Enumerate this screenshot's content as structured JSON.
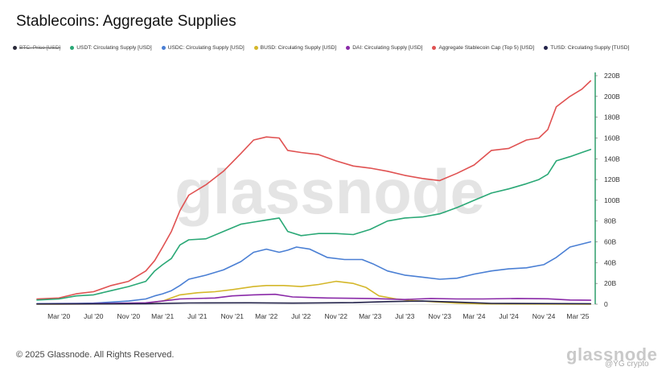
{
  "page": {
    "title": "Stablecoins: Aggregate Supplies",
    "copyright": "© 2025 Glassnode. All Rights Reserved.",
    "logo_text": "glassnode",
    "watermark_text": "glassnode",
    "footer_handle": "@YG crypto"
  },
  "chart_data": {
    "type": "line",
    "x_ticks": [
      "Mar '20",
      "Jul '20",
      "Nov '20",
      "Mar '21",
      "Jul '21",
      "Nov '21",
      "Mar '22",
      "Jul '22",
      "Nov '22",
      "Mar '23",
      "Jul '23",
      "Nov '23",
      "Mar '24",
      "Jul '24",
      "Nov '24",
      "Mar '25"
    ],
    "y_ticks": [
      "0",
      "20B",
      "40B",
      "60B",
      "80B",
      "100B",
      "120B",
      "140B",
      "160B",
      "180B",
      "200B",
      "220B"
    ],
    "ylim": [
      0,
      220
    ],
    "y_unit": "B USD",
    "xlim": [
      "2019-12-15",
      "2025-05-01"
    ],
    "y_axis_color": "#2e9e6b",
    "legend": [
      {
        "name": "BTC: Price [USD]",
        "color": "#2a2a3a",
        "disabled": true
      },
      {
        "name": "USDT: Circulating Supply [USD]",
        "color": "#2aa876",
        "disabled": false
      },
      {
        "name": "USDC: Circulating Supply [USD]",
        "color": "#4a7fd4",
        "disabled": false
      },
      {
        "name": "BUSD: Circulating Supply [USD]",
        "color": "#d4b72a",
        "disabled": false
      },
      {
        "name": "DAI: Circulating Supply [USD]",
        "color": "#8a2aa8",
        "disabled": false
      },
      {
        "name": "Aggregate Stablecoin Cap (Top 5) [USD]",
        "color": "#e05252",
        "disabled": false
      },
      {
        "name": "TUSD: Circulating Supply [TUSD]",
        "color": "#23234a",
        "disabled": false
      }
    ],
    "series": [
      {
        "name": "Aggregate Stablecoin Cap (Top 5) [USD]",
        "color": "#e05252",
        "points": [
          [
            "2019-12-15",
            5
          ],
          [
            "2020-03-01",
            6
          ],
          [
            "2020-05-01",
            10
          ],
          [
            "2020-07-01",
            12
          ],
          [
            "2020-09-01",
            18
          ],
          [
            "2020-11-01",
            22
          ],
          [
            "2021-01-01",
            32
          ],
          [
            "2021-02-01",
            42
          ],
          [
            "2021-03-01",
            55
          ],
          [
            "2021-04-01",
            70
          ],
          [
            "2021-05-01",
            90
          ],
          [
            "2021-06-01",
            105
          ],
          [
            "2021-08-01",
            115
          ],
          [
            "2021-10-01",
            128
          ],
          [
            "2021-12-01",
            145
          ],
          [
            "2022-01-15",
            158
          ],
          [
            "2022-03-01",
            161
          ],
          [
            "2022-04-15",
            160
          ],
          [
            "2022-05-15",
            148
          ],
          [
            "2022-07-01",
            146
          ],
          [
            "2022-09-01",
            144
          ],
          [
            "2022-11-01",
            138
          ],
          [
            "2023-01-01",
            133
          ],
          [
            "2023-03-01",
            131
          ],
          [
            "2023-05-01",
            128
          ],
          [
            "2023-07-01",
            124
          ],
          [
            "2023-09-01",
            121
          ],
          [
            "2023-11-01",
            119
          ],
          [
            "2024-01-01",
            126
          ],
          [
            "2024-03-01",
            134
          ],
          [
            "2024-05-01",
            148
          ],
          [
            "2024-07-01",
            150
          ],
          [
            "2024-09-01",
            158
          ],
          [
            "2024-10-15",
            160
          ],
          [
            "2024-11-15",
            168
          ],
          [
            "2024-12-15",
            190
          ],
          [
            "2025-02-01",
            200
          ],
          [
            "2025-03-15",
            207
          ],
          [
            "2025-04-15",
            215
          ]
        ]
      },
      {
        "name": "USDT: Circulating Supply [USD]",
        "color": "#2aa876",
        "points": [
          [
            "2019-12-15",
            4
          ],
          [
            "2020-03-01",
            5
          ],
          [
            "2020-05-01",
            8
          ],
          [
            "2020-07-01",
            9
          ],
          [
            "2020-09-01",
            13
          ],
          [
            "2020-11-01",
            17
          ],
          [
            "2021-01-01",
            22
          ],
          [
            "2021-02-01",
            32
          ],
          [
            "2021-03-01",
            38
          ],
          [
            "2021-04-01",
            44
          ],
          [
            "2021-05-01",
            57
          ],
          [
            "2021-06-01",
            62
          ],
          [
            "2021-08-01",
            63
          ],
          [
            "2021-10-01",
            70
          ],
          [
            "2021-12-01",
            77
          ],
          [
            "2022-01-15",
            79
          ],
          [
            "2022-03-01",
            81
          ],
          [
            "2022-04-15",
            83
          ],
          [
            "2022-05-15",
            70
          ],
          [
            "2022-07-01",
            66
          ],
          [
            "2022-09-01",
            68
          ],
          [
            "2022-11-01",
            68
          ],
          [
            "2023-01-01",
            67
          ],
          [
            "2023-03-01",
            72
          ],
          [
            "2023-05-01",
            80
          ],
          [
            "2023-07-01",
            83
          ],
          [
            "2023-09-01",
            84
          ],
          [
            "2023-11-01",
            87
          ],
          [
            "2024-01-01",
            93
          ],
          [
            "2024-03-01",
            100
          ],
          [
            "2024-05-01",
            107
          ],
          [
            "2024-07-01",
            111
          ],
          [
            "2024-09-01",
            116
          ],
          [
            "2024-10-15",
            120
          ],
          [
            "2024-11-15",
            125
          ],
          [
            "2024-12-15",
            138
          ],
          [
            "2025-02-01",
            142
          ],
          [
            "2025-03-15",
            146
          ],
          [
            "2025-04-15",
            149
          ]
        ]
      },
      {
        "name": "USDC: Circulating Supply [USD]",
        "color": "#4a7fd4",
        "points": [
          [
            "2019-12-15",
            0.5
          ],
          [
            "2020-03-01",
            0.6
          ],
          [
            "2020-05-01",
            0.8
          ],
          [
            "2020-07-01",
            1
          ],
          [
            "2020-09-01",
            2
          ],
          [
            "2020-11-01",
            3
          ],
          [
            "2021-01-01",
            5
          ],
          [
            "2021-02-01",
            8
          ],
          [
            "2021-03-01",
            10
          ],
          [
            "2021-04-01",
            13
          ],
          [
            "2021-05-01",
            18
          ],
          [
            "2021-06-01",
            24
          ],
          [
            "2021-08-01",
            28
          ],
          [
            "2021-10-01",
            33
          ],
          [
            "2021-12-01",
            41
          ],
          [
            "2022-01-15",
            50
          ],
          [
            "2022-03-01",
            53
          ],
          [
            "2022-04-15",
            50
          ],
          [
            "2022-05-15",
            52
          ],
          [
            "2022-06-15",
            55
          ],
          [
            "2022-08-01",
            53
          ],
          [
            "2022-10-01",
            45
          ],
          [
            "2022-12-01",
            43
          ],
          [
            "2023-02-01",
            43
          ],
          [
            "2023-03-10",
            39
          ],
          [
            "2023-05-01",
            32
          ],
          [
            "2023-07-01",
            28
          ],
          [
            "2023-09-01",
            26
          ],
          [
            "2023-11-01",
            24
          ],
          [
            "2024-01-01",
            25
          ],
          [
            "2024-03-01",
            29
          ],
          [
            "2024-05-01",
            32
          ],
          [
            "2024-07-01",
            34
          ],
          [
            "2024-09-01",
            35
          ],
          [
            "2024-11-01",
            38
          ],
          [
            "2024-12-15",
            45
          ],
          [
            "2025-02-01",
            55
          ],
          [
            "2025-04-15",
            60
          ]
        ]
      },
      {
        "name": "BUSD: Circulating Supply [USD]",
        "color": "#d4b72a",
        "points": [
          [
            "2019-12-15",
            0
          ],
          [
            "2020-03-01",
            0.1
          ],
          [
            "2020-07-01",
            0.2
          ],
          [
            "2020-11-01",
            0.5
          ],
          [
            "2021-01-01",
            1
          ],
          [
            "2021-03-01",
            3
          ],
          [
            "2021-05-01",
            9
          ],
          [
            "2021-07-01",
            11
          ],
          [
            "2021-09-01",
            12
          ],
          [
            "2021-11-01",
            14
          ],
          [
            "2022-01-15",
            17
          ],
          [
            "2022-03-01",
            18
          ],
          [
            "2022-05-01",
            18
          ],
          [
            "2022-07-01",
            17
          ],
          [
            "2022-09-01",
            19
          ],
          [
            "2022-11-01",
            22
          ],
          [
            "2023-01-01",
            20
          ],
          [
            "2023-02-15",
            16
          ],
          [
            "2023-04-01",
            8
          ],
          [
            "2023-06-01",
            5
          ],
          [
            "2023-08-01",
            3.5
          ],
          [
            "2023-10-01",
            2.5
          ],
          [
            "2024-01-01",
            1
          ],
          [
            "2024-04-01",
            0.3
          ],
          [
            "2025-04-15",
            0.1
          ]
        ]
      },
      {
        "name": "DAI: Circulating Supply [USD]",
        "color": "#8a2aa8",
        "points": [
          [
            "2019-12-15",
            0.2
          ],
          [
            "2020-06-01",
            0.5
          ],
          [
            "2020-11-01",
            1
          ],
          [
            "2021-01-01",
            1.3
          ],
          [
            "2021-03-01",
            3
          ],
          [
            "2021-05-01",
            5
          ],
          [
            "2021-09-01",
            6
          ],
          [
            "2021-11-01",
            8
          ],
          [
            "2022-01-15",
            9
          ],
          [
            "2022-04-01",
            9.5
          ],
          [
            "2022-06-01",
            7
          ],
          [
            "2022-10-01",
            6
          ],
          [
            "2023-03-01",
            5.5
          ],
          [
            "2023-07-01",
            4.5
          ],
          [
            "2023-10-01",
            5.5
          ],
          [
            "2024-01-01",
            5
          ],
          [
            "2024-04-01",
            5
          ],
          [
            "2024-08-01",
            5.5
          ],
          [
            "2024-11-15",
            5.2
          ],
          [
            "2025-02-01",
            4
          ],
          [
            "2025-04-15",
            3.8
          ]
        ]
      },
      {
        "name": "TUSD: Circulating Supply [TUSD]",
        "color": "#23234a",
        "points": [
          [
            "2019-12-15",
            0.2
          ],
          [
            "2020-06-01",
            0.3
          ],
          [
            "2021-01-01",
            0.5
          ],
          [
            "2021-06-01",
            1.2
          ],
          [
            "2022-01-01",
            1.3
          ],
          [
            "2022-06-01",
            1
          ],
          [
            "2023-01-01",
            1.5
          ],
          [
            "2023-05-01",
            2.5
          ],
          [
            "2023-09-01",
            3
          ],
          [
            "2024-01-01",
            2
          ],
          [
            "2024-05-01",
            0.8
          ],
          [
            "2025-04-15",
            0.5
          ]
        ]
      }
    ]
  }
}
